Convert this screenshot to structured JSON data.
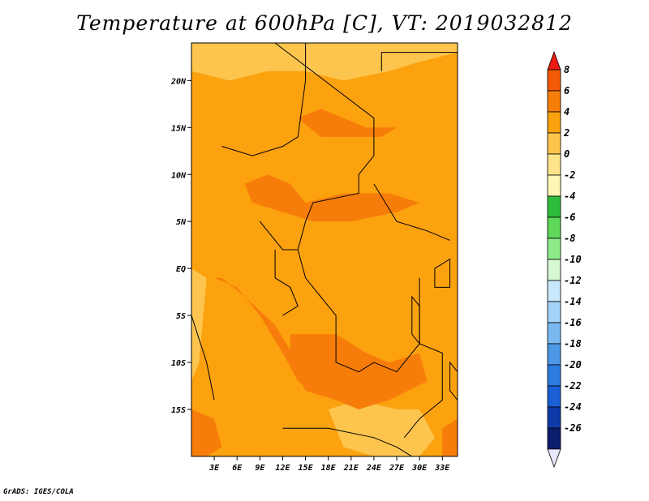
{
  "title": "Temperature at 600hPa [C], VT: 2019032812",
  "credit": "GrADS: IGES/COLA",
  "map": {
    "lon_range": [
      0,
      35
    ],
    "lat_range": [
      -20,
      24
    ],
    "lat_ticks": [
      {
        "value": 20,
        "label": "20N"
      },
      {
        "value": 15,
        "label": "15N"
      },
      {
        "value": 10,
        "label": "10N"
      },
      {
        "value": 5,
        "label": "5N"
      },
      {
        "value": 0,
        "label": "EQ"
      },
      {
        "value": -5,
        "label": "5S"
      },
      {
        "value": -10,
        "label": "10S"
      },
      {
        "value": -15,
        "label": "15S"
      }
    ],
    "lon_ticks": [
      {
        "value": 3,
        "label": "3E"
      },
      {
        "value": 6,
        "label": "6E"
      },
      {
        "value": 9,
        "label": "9E"
      },
      {
        "value": 12,
        "label": "12E"
      },
      {
        "value": 15,
        "label": "15E"
      },
      {
        "value": 18,
        "label": "18E"
      },
      {
        "value": 21,
        "label": "21E"
      },
      {
        "value": 24,
        "label": "24E"
      },
      {
        "value": 27,
        "label": "27E"
      },
      {
        "value": 30,
        "label": "30E"
      },
      {
        "value": 33,
        "label": "33E"
      }
    ],
    "colors": {
      "lt0": "#fee58a",
      "0to2": "#fdc54e",
      "2to4": "#fca20f",
      "4to6": "#f77d0a",
      "6to8": "#f45a05"
    },
    "warm_regions_lonlat": [
      [
        [
          3,
          -1
        ],
        [
          6,
          -2
        ],
        [
          9,
          -5
        ],
        [
          12,
          -9
        ],
        [
          14,
          -12
        ],
        [
          16,
          -13
        ],
        [
          14,
          -10
        ],
        [
          11,
          -6
        ],
        [
          7,
          -3
        ],
        [
          4,
          -1
        ]
      ],
      [
        [
          13,
          -7
        ],
        [
          19,
          -7
        ],
        [
          23,
          -9
        ],
        [
          26,
          -10
        ],
        [
          30,
          -9
        ],
        [
          31,
          -12
        ],
        [
          26,
          -14
        ],
        [
          22,
          -15
        ],
        [
          19,
          -14
        ],
        [
          15,
          -13
        ],
        [
          13,
          -10
        ]
      ],
      [
        [
          7,
          9
        ],
        [
          10,
          10
        ],
        [
          13,
          9
        ],
        [
          15,
          7
        ],
        [
          20,
          8
        ],
        [
          26,
          8
        ],
        [
          30,
          7
        ],
        [
          27,
          6
        ],
        [
          21,
          5
        ],
        [
          16,
          5
        ],
        [
          12,
          6
        ],
        [
          8,
          7
        ]
      ],
      [
        [
          14,
          16
        ],
        [
          17,
          17
        ],
        [
          20,
          16
        ],
        [
          23,
          15
        ],
        [
          27,
          15
        ],
        [
          25,
          14
        ],
        [
          21,
          14
        ],
        [
          17,
          14
        ]
      ],
      [
        [
          0,
          -15
        ],
        [
          3,
          -16
        ],
        [
          4,
          -19
        ],
        [
          2,
          -20
        ],
        [
          0,
          -20
        ]
      ],
      [
        [
          33,
          -17
        ],
        [
          35,
          -16
        ],
        [
          35,
          -20
        ],
        [
          33,
          -20
        ]
      ]
    ],
    "cool_regions_lonlat": [
      [
        [
          0,
          24
        ],
        [
          35,
          24
        ],
        [
          35,
          23
        ],
        [
          30,
          22
        ],
        [
          26,
          21
        ],
        [
          20,
          20
        ],
        [
          15,
          21
        ],
        [
          10,
          21
        ],
        [
          5,
          20
        ],
        [
          0,
          21
        ]
      ],
      [
        [
          18,
          -15
        ],
        [
          22,
          -14
        ],
        [
          27,
          -15
        ],
        [
          30,
          -15
        ],
        [
          32,
          -18
        ],
        [
          30,
          -20
        ],
        [
          24,
          -20
        ],
        [
          20,
          -19
        ]
      ],
      [
        [
          0,
          0
        ],
        [
          2,
          -1
        ],
        [
          1,
          -10
        ],
        [
          0,
          -12
        ]
      ]
    ],
    "borders_lonlat": [
      [
        [
          11,
          24
        ],
        [
          24,
          16
        ],
        [
          24,
          12
        ],
        [
          22,
          10
        ],
        [
          22,
          8
        ],
        [
          16,
          7
        ],
        [
          15,
          5
        ],
        [
          14,
          2
        ],
        [
          15,
          -1
        ],
        [
          17,
          -3
        ],
        [
          19,
          -5
        ],
        [
          19,
          -10
        ],
        [
          22,
          -11
        ],
        [
          24,
          -10
        ],
        [
          27,
          -11
        ],
        [
          30,
          -8
        ]
      ],
      [
        [
          4,
          13
        ],
        [
          8,
          12
        ],
        [
          12,
          13
        ],
        [
          14,
          14
        ],
        [
          15,
          20
        ],
        [
          15,
          24
        ]
      ],
      [
        [
          25,
          21
        ],
        [
          25,
          23
        ],
        [
          35,
          23
        ]
      ],
      [
        [
          9,
          5
        ],
        [
          12,
          2
        ],
        [
          14,
          2
        ]
      ],
      [
        [
          11,
          2
        ],
        [
          11,
          -1
        ],
        [
          13,
          -2
        ],
        [
          14,
          -4
        ],
        [
          12,
          -5
        ]
      ],
      [
        [
          24,
          9
        ],
        [
          27,
          5
        ],
        [
          31,
          4
        ],
        [
          34,
          3
        ]
      ],
      [
        [
          30,
          -1
        ],
        [
          30,
          -3
        ],
        [
          30,
          -8
        ],
        [
          33,
          -9
        ],
        [
          33,
          -14
        ],
        [
          30,
          -16
        ],
        [
          28,
          -18
        ]
      ],
      [
        [
          12,
          -17
        ],
        [
          18,
          -17
        ],
        [
          24,
          -18
        ],
        [
          27,
          -19
        ],
        [
          29,
          -20
        ]
      ],
      [
        [
          0,
          -5
        ],
        [
          2,
          -10
        ],
        [
          3,
          -14
        ]
      ]
    ],
    "lakes_lonlat": [
      [
        [
          32,
          0
        ],
        [
          34,
          1
        ],
        [
          34,
          -2
        ],
        [
          32,
          -2
        ]
      ],
      [
        [
          29,
          -3
        ],
        [
          30,
          -4
        ],
        [
          30,
          -8
        ],
        [
          29,
          -7
        ]
      ],
      [
        [
          34,
          -10
        ],
        [
          35,
          -11
        ],
        [
          35,
          -14
        ],
        [
          34,
          -13
        ]
      ]
    ]
  },
  "colorbar": {
    "labels": [
      "8",
      "6",
      "4",
      "2",
      "0",
      "-2",
      "-4",
      "-6",
      "-8",
      "-10",
      "-12",
      "-14",
      "-16",
      "-18",
      "-20",
      "-22",
      "-24",
      "-26"
    ],
    "colors_top_to_bottom": [
      "#f45a05",
      "#f77d0a",
      "#fca20f",
      "#fdc54e",
      "#fee58a",
      "#fff6b4",
      "#2ebd3a",
      "#5ed75a",
      "#8fea8a",
      "#d5f7d2",
      "#c8e9fb",
      "#a3d3f7",
      "#79b9f0",
      "#4d98e6",
      "#2d7be0",
      "#1b5fd6",
      "#0e3aa8",
      "#0a1c6a"
    ],
    "top_arrow_color": "#ef1b12",
    "bottom_arrow_color": "#e8e8ff"
  }
}
